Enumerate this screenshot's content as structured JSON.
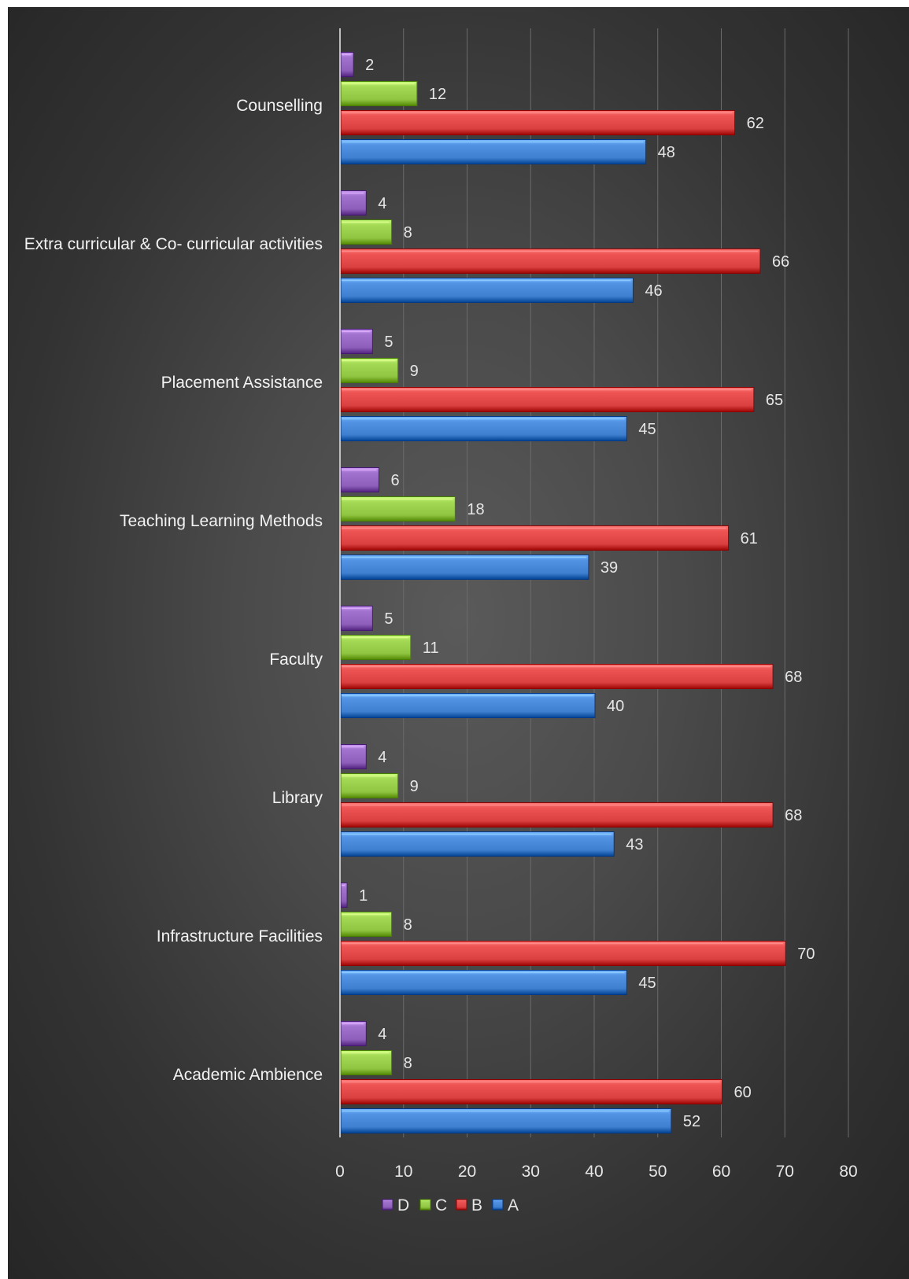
{
  "chart_data": {
    "type": "bar",
    "orientation": "horizontal",
    "categories": [
      "Counselling",
      "Extra curricular & Co- curricular activities",
      "Placement Assistance",
      "Teaching Learning  Methods",
      "Faculty",
      "Library",
      "Infrastructure Facilities",
      "Academic Ambience"
    ],
    "series": [
      {
        "name": "D",
        "color": "#8e5fba",
        "values": [
          2,
          4,
          5,
          6,
          5,
          4,
          1,
          4
        ]
      },
      {
        "name": "C",
        "color": "#8fc540",
        "values": [
          12,
          8,
          9,
          18,
          11,
          9,
          8,
          8
        ]
      },
      {
        "name": "B",
        "color": "#d9403f",
        "values": [
          62,
          66,
          65,
          61,
          68,
          68,
          70,
          60
        ]
      },
      {
        "name": "A",
        "color": "#3f7fd0",
        "values": [
          48,
          46,
          45,
          39,
          40,
          43,
          45,
          52
        ]
      }
    ],
    "x_ticks": [
      "0",
      "10",
      "20",
      "30",
      "40",
      "50",
      "60",
      "70",
      "80"
    ],
    "xlim": [
      0,
      80
    ],
    "legend": {
      "position": "bottom",
      "order": [
        "D",
        "C",
        "B",
        "A"
      ]
    },
    "grid": "vertical",
    "data_labels": true,
    "title": "",
    "xlabel": "",
    "ylabel": ""
  }
}
